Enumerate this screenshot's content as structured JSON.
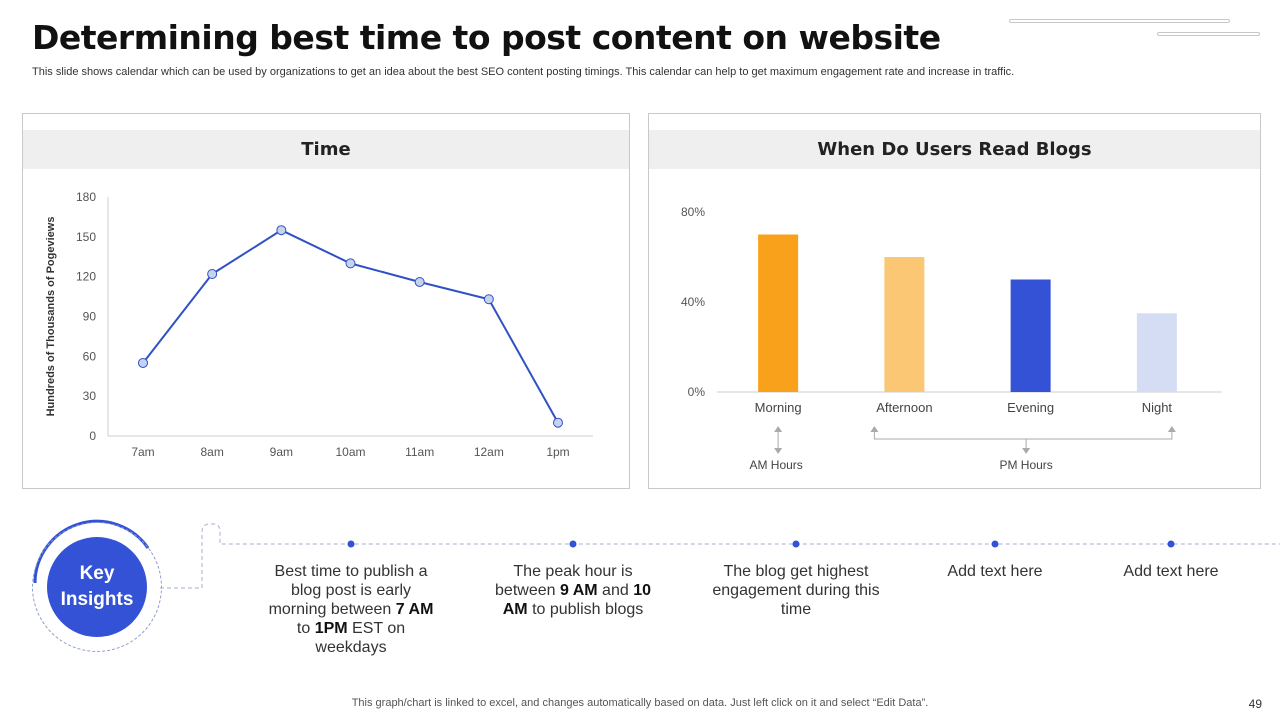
{
  "title": "Determining best time to post content on website",
  "subtitle": "This slide shows calendar which can be used by organizations to get an idea about the best SEO content posting timings. This calendar can help to get maximum engagement rate and increase in traffic.",
  "chart_data": [
    {
      "type": "line",
      "title": "Time",
      "ylabel": "Hundreds of Thousands of Pogeviews",
      "xlabel": "",
      "categories": [
        "7am",
        "8am",
        "9am",
        "10am",
        "11am",
        "12am",
        "1pm"
      ],
      "values": [
        55,
        122,
        155,
        130,
        116,
        103,
        10
      ],
      "ylim": [
        0,
        180
      ],
      "yticks": [
        "0",
        "30",
        "60",
        "90",
        "120",
        "150",
        "180"
      ],
      "colors": {
        "line": "#3051c4",
        "marker_fill": "#c5d2f0"
      }
    },
    {
      "type": "bar",
      "title": "When Do Users Read Blogs",
      "categories": [
        "Morning",
        "Afternoon",
        "Evening",
        "Night"
      ],
      "values": [
        70,
        60,
        50,
        35
      ],
      "ylim": [
        0,
        80
      ],
      "yticks": [
        "0%",
        "40%",
        "80%"
      ],
      "colors": [
        "#f9a11b",
        "#fbc774",
        "#3352d6",
        "#d5ddf5"
      ],
      "annotations": {
        "am_label": "AM Hours",
        "pm_label": "PM Hours"
      }
    }
  ],
  "insights": {
    "badge_line1": "Key",
    "badge_line2": "Insights",
    "items": [
      {
        "html": "Best time to publish a blog post is early morning between <b>7 AM</b> to <b>1PM</b> EST on weekdays"
      },
      {
        "html": "The peak hour is between <b>9 AM</b> and <b>10 AM</b> to publish blogs"
      },
      {
        "html": "The blog get highest engagement during this time"
      },
      {
        "html": "Add text here"
      },
      {
        "html": "Add text here"
      }
    ],
    "colors": {
      "accent": "#3352d6",
      "dashed": "#b7bfd6"
    }
  },
  "footer": "This graph/chart is linked to excel,  and changes automatically based on data. Just left click on it and select “Edit Data”.",
  "page_number": "49"
}
